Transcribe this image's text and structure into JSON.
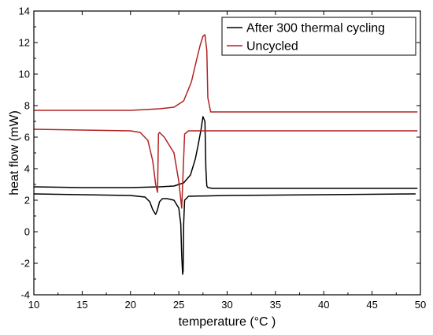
{
  "chart_data": {
    "type": "line",
    "xlabel": "temperature (°C )",
    "ylabel": "heat flow (mW)",
    "xlim": [
      10,
      50
    ],
    "ylim": [
      -4,
      14
    ],
    "xticks": [
      "10",
      "15",
      "20",
      "25",
      "30",
      "35",
      "40",
      "45",
      "50"
    ],
    "yticks": [
      "-4",
      "-2",
      "0",
      "2",
      "4",
      "6",
      "8",
      "10",
      "12",
      "14"
    ],
    "legend_position": "top-right",
    "series": [
      {
        "name": "After 300 thermal cycling",
        "color": "#000000",
        "segments": [
          {
            "x": [
              10,
              15,
              20,
              21.5,
              22.0,
              22.3,
              22.6,
              22.8,
              23.0,
              23.3,
              23.8,
              24.5,
              25.0,
              25.2,
              25.3,
              25.4,
              25.45,
              25.5,
              25.6,
              26,
              30,
              40,
              49.5
            ],
            "y": [
              2.4,
              2.35,
              2.3,
              2.2,
              1.9,
              1.4,
              1.1,
              1.4,
              1.9,
              2.1,
              2.1,
              2.0,
              1.5,
              0.5,
              -1.5,
              -2.7,
              -2.5,
              0.5,
              2.0,
              2.25,
              2.3,
              2.35,
              2.4
            ]
          },
          {
            "x": [
              10,
              15,
              20,
              23,
              24.5,
              25.5,
              26.2,
              26.7,
              27.0,
              27.3,
              27.5,
              27.7,
              27.8,
              27.9,
              28.0,
              28.5,
              30,
              40,
              49.7
            ],
            "y": [
              2.85,
              2.8,
              2.8,
              2.85,
              2.9,
              3.1,
              3.6,
              4.6,
              5.5,
              6.5,
              7.3,
              7.0,
              4.0,
              2.9,
              2.8,
              2.75,
              2.75,
              2.75,
              2.75
            ]
          }
        ]
      },
      {
        "name": "Uncycled",
        "color": "#b22222",
        "segments": [
          {
            "x": [
              10,
              15,
              20,
              21.0,
              21.8,
              22.3,
              22.6,
              22.8,
              22.9,
              23.0,
              23.5,
              24.5,
              25.0,
              25.3,
              25.6,
              26,
              30,
              40,
              49.7
            ],
            "y": [
              6.5,
              6.45,
              6.4,
              6.3,
              5.8,
              4.5,
              3.0,
              2.5,
              6.2,
              6.3,
              6.0,
              5.0,
              3.2,
              1.5,
              6.2,
              6.4,
              6.4,
              6.4,
              6.4
            ]
          },
          {
            "x": [
              10,
              15,
              20,
              23,
              24.5,
              25.5,
              26.3,
              26.8,
              27.2,
              27.5,
              27.7,
              27.9,
              28.0,
              28.3,
              30,
              40,
              49.7
            ],
            "y": [
              7.7,
              7.7,
              7.7,
              7.8,
              7.9,
              8.3,
              9.5,
              10.8,
              11.8,
              12.4,
              12.5,
              11.5,
              8.5,
              7.6,
              7.6,
              7.6,
              7.6
            ]
          }
        ]
      }
    ]
  }
}
